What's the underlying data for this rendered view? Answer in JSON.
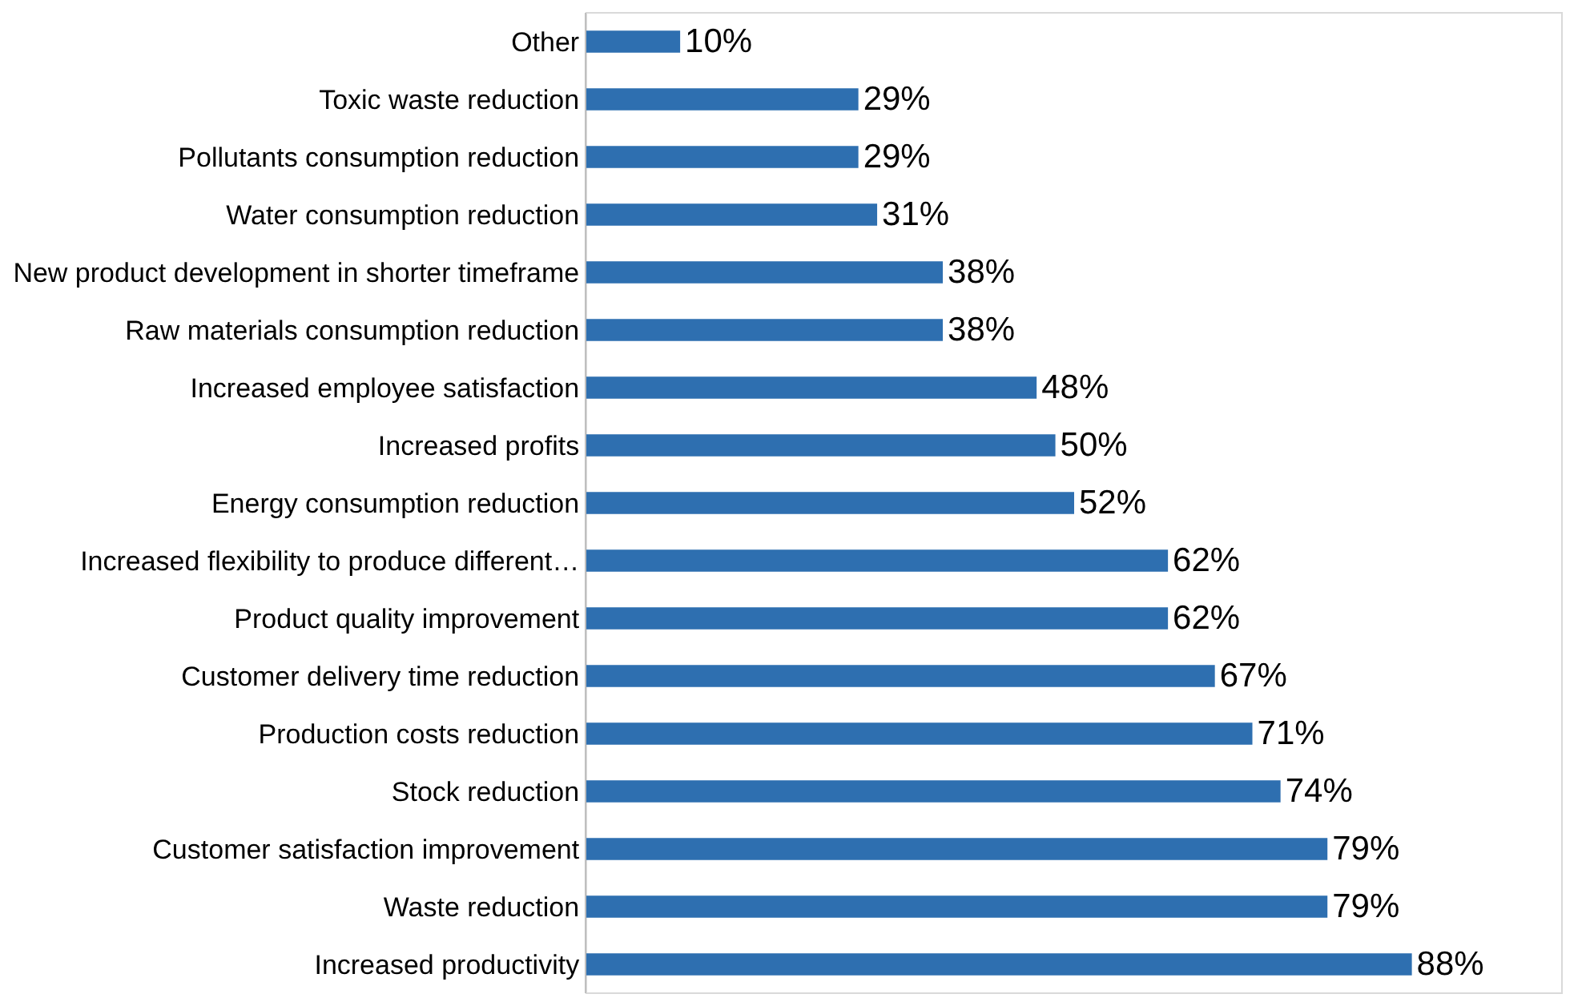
{
  "chart_data": {
    "type": "bar",
    "orientation": "horizontal",
    "categories": [
      "Other",
      "Toxic waste reduction",
      "Pollutants consumption reduction",
      "Water consumption reduction",
      "New product development in shorter timeframe",
      "Raw materials consumption reduction",
      "Increased employee satisfaction",
      "Increased profits",
      "Energy consumption reduction",
      "Increased flexibility to produce different…",
      "Product quality improvement",
      "Customer delivery time reduction",
      "Production costs reduction",
      "Stock reduction",
      "Customer satisfaction improvement",
      "Waste reduction",
      "Increased productivity"
    ],
    "values": [
      10,
      29,
      29,
      31,
      38,
      38,
      48,
      50,
      52,
      62,
      62,
      67,
      71,
      74,
      79,
      79,
      88
    ],
    "value_labels": [
      "10%",
      "29%",
      "29%",
      "31%",
      "38%",
      "38%",
      "48%",
      "50%",
      "52%",
      "62%",
      "62%",
      "67%",
      "71%",
      "74%",
      "79%",
      "79%",
      "88%"
    ],
    "color": "#2e6fb0",
    "xlim": [
      0,
      104
    ],
    "grid": false
  }
}
